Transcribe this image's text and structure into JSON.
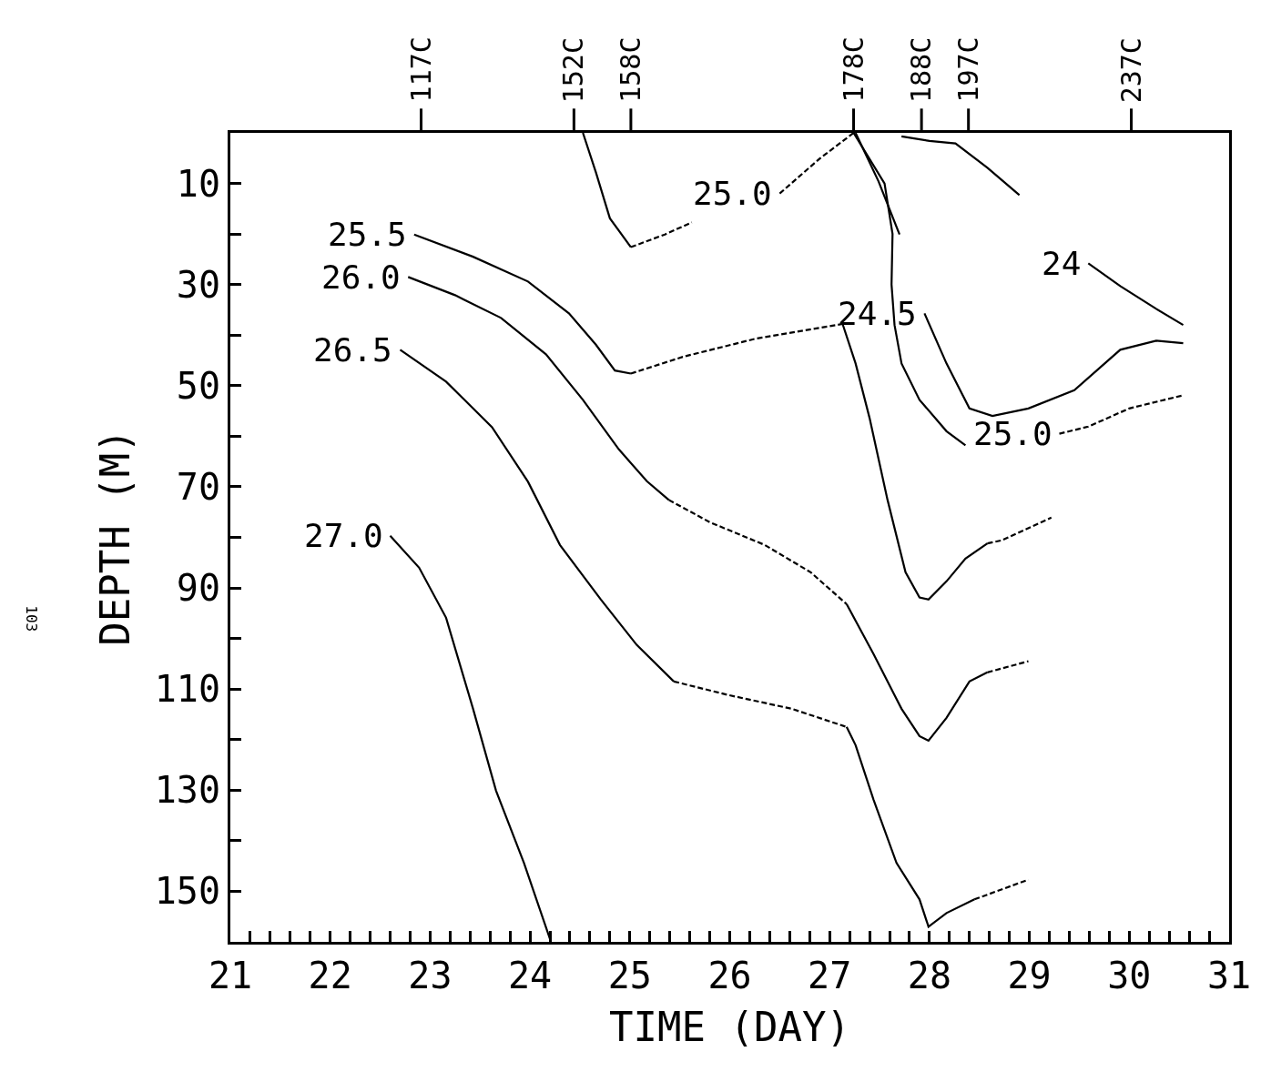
{
  "chart_data": {
    "type": "line",
    "xlabel": "TIME (DAY)",
    "ylabel": "DEPTH (M)",
    "xlim": [
      21,
      31
    ],
    "ylim": [
      160,
      0
    ],
    "xticks": [
      21,
      {
        "value": 21.2,
        "label": null
      },
      {
        "value": 21.4,
        "label": null
      },
      {
        "value": 21.6,
        "label": null
      },
      {
        "value": 21.8,
        "label": null
      },
      22,
      {
        "value": 22.2,
        "label": null
      },
      {
        "value": 22.4,
        "label": null
      },
      {
        "value": 22.6,
        "label": null
      },
      {
        "value": 22.8,
        "label": null
      },
      23,
      {
        "value": 23.2,
        "label": null
      },
      {
        "value": 23.4,
        "label": null
      },
      {
        "value": 23.6,
        "label": null
      },
      {
        "value": 23.8,
        "label": null
      },
      24,
      {
        "value": 24.2,
        "label": null
      },
      {
        "value": 24.4,
        "label": null
      },
      {
        "value": 24.6,
        "label": null
      },
      {
        "value": 24.8,
        "label": null
      },
      25,
      {
        "value": 25.2,
        "label": null
      },
      {
        "value": 25.4,
        "label": null
      },
      {
        "value": 25.6,
        "label": null
      },
      {
        "value": 25.8,
        "label": null
      },
      26,
      {
        "value": 26.2,
        "label": null
      },
      {
        "value": 26.4,
        "label": null
      },
      {
        "value": 26.6,
        "label": null
      },
      {
        "value": 26.8,
        "label": null
      },
      27,
      {
        "value": 27.2,
        "label": null
      },
      {
        "value": 27.4,
        "label": null
      },
      {
        "value": 27.6,
        "label": null
      },
      {
        "value": 27.8,
        "label": null
      },
      28,
      {
        "value": 28.2,
        "label": null
      },
      {
        "value": 28.4,
        "label": null
      },
      {
        "value": 28.6,
        "label": null
      },
      {
        "value": 28.8,
        "label": null
      },
      29,
      {
        "value": 29.2,
        "label": null
      },
      {
        "value": 29.4,
        "label": null
      },
      {
        "value": 29.6,
        "label": null
      },
      {
        "value": 29.8,
        "label": null
      },
      30,
      {
        "value": 30.2,
        "label": null
      },
      {
        "value": 30.4,
        "label": null
      },
      {
        "value": 30.6,
        "label": null
      },
      {
        "value": 30.8,
        "label": null
      },
      31
    ],
    "yticks": [
      10,
      {
        "value": 20,
        "label": null
      },
      30,
      {
        "value": 40,
        "label": null
      },
      50,
      {
        "value": 60,
        "label": null
      },
      70,
      {
        "value": 80,
        "label": null
      },
      90,
      {
        "value": 100,
        "label": null
      },
      110,
      {
        "value": 120,
        "label": null
      },
      130,
      {
        "value": 140,
        "label": null
      },
      150
    ],
    "ref_lines": [
      {
        "axis": "x",
        "value": 22.91,
        "label": "117C"
      },
      {
        "axis": "x",
        "value": 24.44,
        "label": "152C"
      },
      {
        "axis": "x",
        "value": 25.01,
        "label": "158C"
      },
      {
        "axis": "x",
        "value": 27.24,
        "label": "178C"
      },
      {
        "axis": "x",
        "value": 27.92,
        "label": "188C"
      },
      {
        "axis": "x",
        "value": 28.39,
        "label": "197C"
      },
      {
        "axis": "x",
        "value": 30.02,
        "label": "237C"
      }
    ],
    "legend": false,
    "marker": "none",
    "series": [
      {
        "color": "#000000",
        "line_style": "solid",
        "x": [
          24.53,
          24.66,
          24.8,
          25.01
        ],
        "values": [
          0,
          7.8,
          16.9,
          22.6
        ]
      },
      {
        "color": "#000000",
        "line_style": "dashed",
        "x": [
          25.01,
          25.35,
          25.62
        ],
        "values": [
          22.6,
          20.1,
          17.7
        ]
      },
      {
        "name": "25.0",
        "color": "#000000",
        "line_style": "dashed",
        "x": [
          26.5,
          26.9,
          27.24
        ],
        "values": [
          12,
          5.1,
          0
        ]
      },
      {
        "name": "25.5",
        "color": "#000000",
        "line_style": "solid",
        "x": [
          22.84,
          23.43,
          23.98,
          24.39,
          24.66,
          24.85,
          25.01
        ],
        "values": [
          20.1,
          24.5,
          29.4,
          35.7,
          41.9,
          47,
          47.6
        ]
      },
      {
        "color": "#000000",
        "line_style": "dashed",
        "x": [
          25.01,
          25.53,
          26.26,
          27.13
        ],
        "values": [
          47.6,
          44.3,
          40.7,
          37.8
        ]
      },
      {
        "color": "#000000",
        "line_style": "solid",
        "x": [
          27.13,
          27.26,
          27.4,
          27.58,
          27.76,
          27.9,
          27.99,
          28.17,
          28.36,
          28.58
        ],
        "values": [
          37.8,
          45.6,
          56.4,
          72.6,
          86.9,
          91.9,
          92.3,
          88.7,
          84.2,
          81.2
        ]
      },
      {
        "color": "#000000",
        "line_style": "dashed",
        "x": [
          28.58,
          28.72,
          29.22
        ],
        "values": [
          81.2,
          80.6,
          76.1
        ]
      },
      {
        "color": "#000000",
        "line_style": "solid",
        "x": [
          27.24,
          27.55,
          27.63,
          27.62,
          27.65,
          27.72,
          27.9,
          28.17,
          28.36
        ],
        "values": [
          0,
          10,
          20,
          30,
          38,
          45.6,
          52.8,
          59,
          61.8
        ]
      },
      {
        "name": "25.0",
        "color": "#000000",
        "line_style": "dashed",
        "x": [
          29.3,
          29.59,
          30,
          30.54
        ],
        "values": [
          59.5,
          58.1,
          54.5,
          51.9
        ]
      },
      {
        "color": "#000000",
        "line_style": "solid",
        "x": [
          27.26,
          27.49,
          27.7
        ],
        "values": [
          0,
          9.6,
          20.1
        ]
      },
      {
        "name": "24.5",
        "color": "#000000",
        "line_style": "solid",
        "x": [
          27.95,
          28.17,
          28.4,
          28.63,
          28.99,
          29.45,
          29.91,
          30.27,
          30.54
        ],
        "values": [
          35.7,
          45.6,
          54.5,
          56,
          54.5,
          50.9,
          42.9,
          41.1,
          41.6
        ]
      },
      {
        "color": "#000000",
        "line_style": "solid",
        "x": [
          27.72,
          28,
          28.26,
          28.58,
          28.9
        ],
        "values": [
          0.7,
          1.6,
          2.1,
          6.9,
          12.3
        ]
      },
      {
        "name": "24",
        "color": "#000000",
        "line_style": "solid",
        "x": [
          29.59,
          29.91,
          30.27,
          30.54
        ],
        "values": [
          25.8,
          30.3,
          34.8,
          38
        ]
      },
      {
        "name": "26.0",
        "color": "#000000",
        "line_style": "solid",
        "x": [
          22.78,
          23.25,
          23.71,
          24.16,
          24.53,
          24.89,
          25.17,
          25.39
        ],
        "values": [
          28.5,
          32.1,
          36.6,
          43.8,
          52.8,
          62.6,
          68.9,
          72.6
        ]
      },
      {
        "color": "#000000",
        "line_style": "dashed",
        "x": [
          25.39,
          25.8,
          26.35,
          26.81,
          27.17
        ],
        "values": [
          72.6,
          77,
          81.5,
          86.9,
          93.2
        ]
      },
      {
        "color": "#000000",
        "line_style": "solid",
        "x": [
          27.17,
          27.44,
          27.72,
          27.9,
          27.99,
          28.17,
          28.4,
          28.58
        ],
        "values": [
          93.2,
          103.1,
          113.9,
          119.3,
          120.2,
          115.7,
          108.5,
          106.7
        ]
      },
      {
        "color": "#000000",
        "line_style": "dashed",
        "x": [
          28.58,
          28.99
        ],
        "values": [
          106.7,
          104.5
        ]
      },
      {
        "name": "26.5",
        "color": "#000000",
        "line_style": "solid",
        "x": [
          22.7,
          23.16,
          23.62,
          23.98,
          24.3,
          24.71,
          25.07,
          25.44
        ],
        "values": [
          42.9,
          49.2,
          58.2,
          69,
          81.5,
          92.3,
          101.3,
          108.5
        ]
      },
      {
        "color": "#000000",
        "line_style": "dashed",
        "x": [
          25.44,
          25.99,
          26.62,
          27.17
        ],
        "values": [
          108.5,
          111.2,
          113.9,
          117.5
        ]
      },
      {
        "color": "#000000",
        "line_style": "solid",
        "x": [
          27.17,
          27.26,
          27.44,
          27.67,
          27.9,
          27.99,
          28.17,
          28.45
        ],
        "values": [
          117.5,
          121.1,
          131.9,
          144.4,
          151.6,
          157,
          154.3,
          151.6
        ]
      },
      {
        "color": "#000000",
        "line_style": "dashed",
        "x": [
          28.45,
          28.99
        ],
        "values": [
          151.6,
          147.7
        ]
      },
      {
        "name": "27.0",
        "color": "#000000",
        "line_style": "solid",
        "x": [
          22.6,
          22.89,
          23.16,
          23.43,
          23.66,
          23.94,
          24.21
        ],
        "values": [
          79.7,
          86,
          95.9,
          113.9,
          130.1,
          144.4,
          160
        ]
      }
    ],
    "annotations": [
      "103"
    ]
  }
}
